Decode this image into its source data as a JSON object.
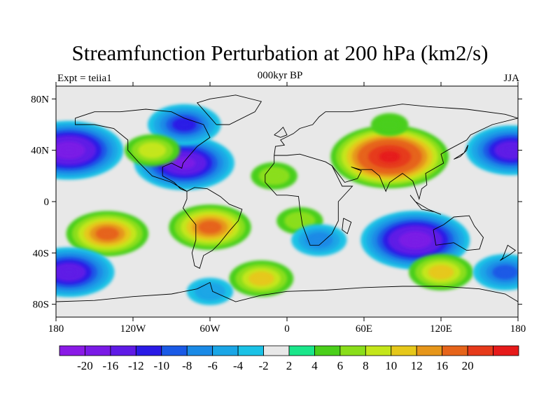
{
  "title": "Streamfunction Perturbation at 200 hPa (km2/s)",
  "subtitle": "000kyr BP",
  "left_string": "Expt = teiia1",
  "right_string": "JJA",
  "map": {
    "projection": "cylindrical-equidistant",
    "lon_range": [
      -180,
      180
    ],
    "lat_range": [
      -90,
      90
    ],
    "background_color": "#e8e8e8",
    "coastline_color": "#000000",
    "lat_ticks": [
      {
        "value": 80,
        "label": "80N"
      },
      {
        "value": 40,
        "label": "40N"
      },
      {
        "value": 0,
        "label": "0"
      },
      {
        "value": -40,
        "label": "40S"
      },
      {
        "value": -80,
        "label": "80S"
      }
    ],
    "lon_ticks": [
      {
        "value": -180,
        "label": "180"
      },
      {
        "value": -120,
        "label": "120W"
      },
      {
        "value": -60,
        "label": "60W"
      },
      {
        "value": 0,
        "label": "0"
      },
      {
        "value": 60,
        "label": "60E"
      },
      {
        "value": 120,
        "label": "120E"
      },
      {
        "value": 180,
        "label": "180"
      }
    ]
  },
  "colorbar": {
    "colors": [
      "#8a1ae6",
      "#7a1ae6",
      "#5f1ae6",
      "#2a1ae6",
      "#1a5ae6",
      "#1a8ae6",
      "#1aa6e6",
      "#1ac2e6",
      "#e8e8e8",
      "#1ae68a",
      "#4acf1a",
      "#8ade1a",
      "#c4e61a",
      "#e6c81a",
      "#e6961a",
      "#e6641a",
      "#e63a1a",
      "#e61a1a"
    ],
    "labels": [
      "-20",
      "-16",
      "-12",
      "-10",
      "-8",
      "-6",
      "-4",
      "-2",
      "2",
      "4",
      "6",
      "8",
      "10",
      "12",
      "16",
      "20"
    ]
  },
  "anomalies": [
    {
      "lon": -170,
      "lat": 40,
      "value": -20
    },
    {
      "lon": -80,
      "lat": 30,
      "value": -18
    },
    {
      "lon": -80,
      "lat": 60,
      "value": -12
    },
    {
      "lon": -105,
      "lat": 40,
      "value": 8
    },
    {
      "lon": 80,
      "lat": 35,
      "value": 22
    },
    {
      "lon": 80,
      "lat": 60,
      "value": 4
    },
    {
      "lon": -140,
      "lat": -25,
      "value": 14
    },
    {
      "lon": -60,
      "lat": -20,
      "value": 14
    },
    {
      "lon": -10,
      "lat": 20,
      "value": 6
    },
    {
      "lon": 100,
      "lat": -30,
      "value": -20
    },
    {
      "lon": 10,
      "lat": -15,
      "value": 6
    },
    {
      "lon": -20,
      "lat": -60,
      "value": 10
    },
    {
      "lon": 120,
      "lat": -55,
      "value": 10
    },
    {
      "lon": -170,
      "lat": -55,
      "value": -16
    },
    {
      "lon": -60,
      "lat": -70,
      "value": -6
    },
    {
      "lon": 175,
      "lat": 40,
      "value": -16
    },
    {
      "lon": 170,
      "lat": -55,
      "value": -10
    },
    {
      "lon": 25,
      "lat": -30,
      "value": -8
    }
  ]
}
